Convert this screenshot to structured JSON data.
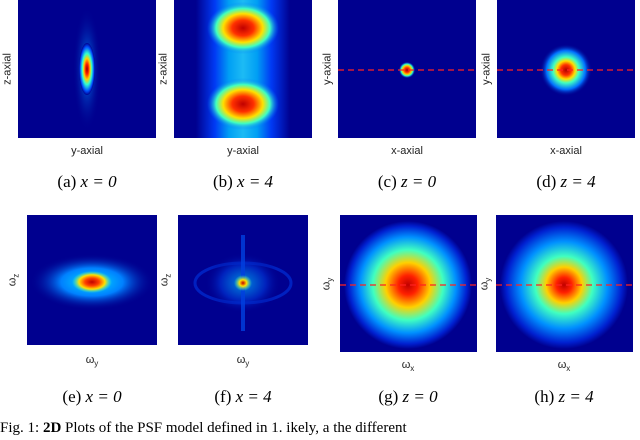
{
  "panels": [
    {
      "xlabel": "y-axial",
      "ylabel": "z-axial",
      "caption_tag": "(a)",
      "caption_math": "x = 0"
    },
    {
      "xlabel": "y-axial",
      "ylabel": "z-axial",
      "caption_tag": "(b)",
      "caption_math": "x = 4"
    },
    {
      "xlabel": "x-axial",
      "ylabel": "y-axial",
      "caption_tag": "(c)",
      "caption_math": "z = 0"
    },
    {
      "xlabel": "x-axial",
      "ylabel": "y-axial",
      "caption_tag": "(d)",
      "caption_math": "z = 4"
    },
    {
      "xlabel_sym": "ω",
      "xlabel_sub": "y",
      "ylabel_sym": "ω",
      "ylabel_sub": "z",
      "caption_tag": "(e)",
      "caption_math": "x = 0"
    },
    {
      "xlabel_sym": "ω",
      "xlabel_sub": "y",
      "ylabel_sym": "ω",
      "ylabel_sub": "z",
      "caption_tag": "(f)",
      "caption_math": "x = 4"
    },
    {
      "xlabel_sym": "ω",
      "xlabel_sub": "x",
      "ylabel_sym": "ω",
      "ylabel_sub": "y",
      "caption_tag": "(g)",
      "caption_math": "z = 0"
    },
    {
      "xlabel_sym": "ω",
      "xlabel_sub": "x",
      "ylabel_sym": "ω",
      "ylabel_sub": "y",
      "caption_tag": "(h)",
      "caption_math": "z = 4"
    }
  ],
  "figure_caption": {
    "prefix": "Fig. 1:",
    "bold": "2D",
    "text": "Plots of the PSF model defined in 1. ikely, a the different"
  },
  "colors": {
    "background": "#00008f",
    "dashed_line": "#ff2020"
  }
}
